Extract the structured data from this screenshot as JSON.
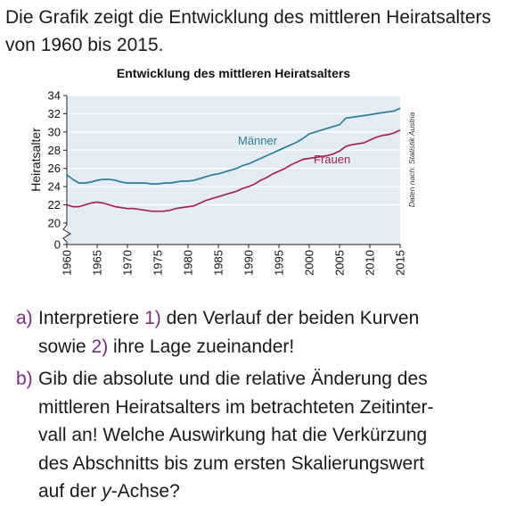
{
  "intro": "Die Grafik zeigt die Entwicklung des mittleren Heiratsalters von 1960 bis 2015.",
  "colors": {
    "maenner": "#2a7f9a",
    "frauen": "#a3245c",
    "accent": "#7b2b86",
    "text": "#1a1a1a"
  },
  "chart_data": {
    "type": "line",
    "title": "Entwicklung des mittleren Heiratsalters",
    "ylabel": "Heiratsalter",
    "xlabel": "",
    "source": "Daten nach: Statistik Austria",
    "x_ticks": [
      "1960",
      "1965",
      "1970",
      "1975",
      "1980",
      "1985",
      "1990",
      "1995",
      "2000",
      "2005",
      "2010",
      "2015"
    ],
    "y_ticks": [
      "0",
      "20",
      "22",
      "24",
      "26",
      "28",
      "30",
      "32",
      "34"
    ],
    "y_axis_break": "0 to 20",
    "ylim": [
      20,
      34
    ],
    "xlim": [
      1960,
      2015
    ],
    "grid": "horizontal",
    "x": [
      1960,
      1961,
      1962,
      1963,
      1964,
      1965,
      1966,
      1967,
      1968,
      1969,
      1970,
      1971,
      1972,
      1973,
      1974,
      1975,
      1976,
      1977,
      1978,
      1979,
      1980,
      1981,
      1982,
      1983,
      1984,
      1985,
      1986,
      1987,
      1988,
      1989,
      1990,
      1991,
      1992,
      1993,
      1994,
      1995,
      1996,
      1997,
      1998,
      1999,
      2000,
      2001,
      2002,
      2003,
      2004,
      2005,
      2006,
      2007,
      2008,
      2009,
      2010,
      2011,
      2012,
      2013,
      2014,
      2015
    ],
    "series": [
      {
        "name": "Männer",
        "values": [
          25.3,
          24.8,
          24.4,
          24.4,
          24.5,
          24.7,
          24.8,
          24.8,
          24.7,
          24.5,
          24.4,
          24.4,
          24.4,
          24.4,
          24.3,
          24.3,
          24.4,
          24.4,
          24.5,
          24.6,
          24.6,
          24.7,
          24.9,
          25.1,
          25.3,
          25.4,
          25.6,
          25.8,
          26.0,
          26.3,
          26.5,
          26.8,
          27.1,
          27.4,
          27.7,
          28.0,
          28.3,
          28.6,
          28.9,
          29.3,
          29.8,
          30.0,
          30.2,
          30.4,
          30.6,
          30.8,
          31.5,
          31.6,
          31.7,
          31.8,
          31.9,
          32.0,
          32.1,
          32.2,
          32.3,
          32.6
        ]
      },
      {
        "name": "Frauen",
        "values": [
          22.0,
          21.8,
          21.8,
          22.0,
          22.2,
          22.3,
          22.2,
          22.0,
          21.8,
          21.7,
          21.6,
          21.6,
          21.5,
          21.4,
          21.3,
          21.3,
          21.3,
          21.4,
          21.6,
          21.7,
          21.8,
          21.9,
          22.2,
          22.5,
          22.7,
          22.9,
          23.1,
          23.3,
          23.5,
          23.8,
          24.0,
          24.3,
          24.7,
          25.0,
          25.4,
          25.7,
          26.0,
          26.4,
          26.7,
          27.0,
          27.1,
          27.2,
          27.3,
          27.4,
          27.6,
          27.9,
          28.4,
          28.6,
          28.7,
          28.8,
          29.1,
          29.4,
          29.6,
          29.7,
          29.9,
          30.2
        ]
      }
    ]
  },
  "tasks": [
    {
      "letter": "a)",
      "lines": [
        [
          {
            "t": "Interpretiere  "
          },
          {
            "t": "1)",
            "c": "num"
          },
          {
            "t": " den Verlauf der beiden Kurven"
          }
        ],
        [
          {
            "t": "sowie  "
          },
          {
            "t": "2)",
            "c": "num"
          },
          {
            "t": " ihre Lage zueinander!"
          }
        ]
      ]
    },
    {
      "letter": "b)",
      "lines": [
        [
          {
            "t": "Gib die absolute und die relative Änderung des"
          }
        ],
        [
          {
            "t": "mittleren Heiratsalters im betrachteten Zeitinter-"
          }
        ],
        [
          {
            "t": "vall an! Welche Auswirkung hat die Verkürzung"
          }
        ],
        [
          {
            "t": "des Abschnitts bis zum ersten Skalierungswert"
          }
        ],
        [
          {
            "t": "auf der "
          },
          {
            "t": "y",
            "c": "it"
          },
          {
            "t": "-Achse?"
          }
        ]
      ]
    }
  ]
}
